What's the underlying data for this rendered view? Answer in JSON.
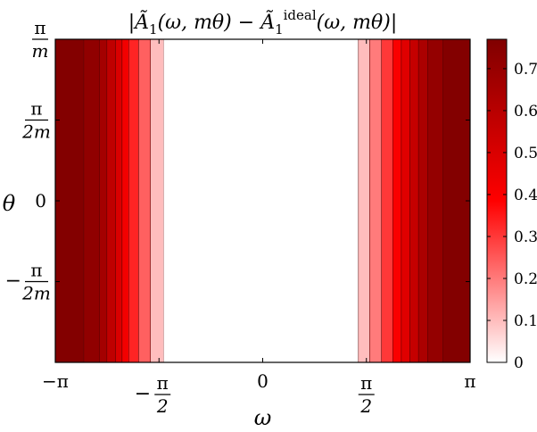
{
  "chart_data": {
    "type": "heatmap",
    "title_parts": [
      "|",
      "Ã",
      "1",
      "(ω, mθ) − ",
      "Ã",
      "1",
      "ideal",
      "(ω, mθ)|"
    ],
    "xlabel": "ω",
    "ylabel": "θ",
    "x_ticks": [
      {
        "value": -3.14159,
        "text": "−π",
        "kind": "plain"
      },
      {
        "value": -1.5708,
        "num": "π",
        "den": "2",
        "sign": "−",
        "kind": "frac"
      },
      {
        "value": 0,
        "text": "0",
        "kind": "plain"
      },
      {
        "value": 1.5708,
        "num": "π",
        "den": "2",
        "sign": "",
        "kind": "frac"
      },
      {
        "value": 3.14159,
        "text": "π",
        "kind": "plain"
      }
    ],
    "y_ticks": [
      {
        "value": 1.0,
        "num": "π",
        "den": "m",
        "sign": "",
        "kind": "frac"
      },
      {
        "value": 0.5,
        "num": "π",
        "den": "2m",
        "sign": "",
        "kind": "frac"
      },
      {
        "value": 0.0,
        "text": "0",
        "kind": "plain"
      },
      {
        "value": -0.5,
        "num": "π",
        "den": "2m",
        "sign": "−",
        "kind": "frac"
      }
    ],
    "xlim": [
      -3.14159,
      3.14159
    ],
    "ylim": [
      -1.0,
      1.0
    ],
    "colorbar": {
      "min": 0,
      "max": 0.77,
      "ticks": [
        "0",
        "0.1",
        "0.2",
        "0.3",
        "0.4",
        "0.5",
        "0.6",
        "0.7"
      ],
      "tick_values": [
        0,
        0.1,
        0.2,
        0.3,
        0.4,
        0.5,
        0.6,
        0.7
      ],
      "colors": [
        "#ffffff",
        "#ff0000",
        "#800000"
      ]
    },
    "bands": [
      {
        "x0": -3.14159,
        "x1": -2.71,
        "value": 0.76
      },
      {
        "x0": -2.71,
        "x1": -2.47,
        "value": 0.72
      },
      {
        "x0": -2.47,
        "x1": -2.36,
        "value": 0.66
      },
      {
        "x0": -2.36,
        "x1": -2.23,
        "value": 0.58
      },
      {
        "x0": -2.23,
        "x1": -2.13,
        "value": 0.5
      },
      {
        "x0": -2.13,
        "x1": -2.03,
        "value": 0.42
      },
      {
        "x0": -2.03,
        "x1": -1.88,
        "value": 0.33
      },
      {
        "x0": -1.88,
        "x1": -1.7,
        "value": 0.24
      },
      {
        "x0": -1.7,
        "x1": -1.5,
        "value": 0.1
      },
      {
        "x0": -1.5,
        "x1": 1.45,
        "value": 0.0
      },
      {
        "x0": 1.45,
        "x1": 1.62,
        "value": 0.1
      },
      {
        "x0": 1.62,
        "x1": 1.8,
        "value": 0.2
      },
      {
        "x0": 1.8,
        "x1": 1.97,
        "value": 0.3
      },
      {
        "x0": 1.97,
        "x1": 2.1,
        "value": 0.4
      },
      {
        "x0": 2.1,
        "x1": 2.23,
        "value": 0.48
      },
      {
        "x0": 2.23,
        "x1": 2.36,
        "value": 0.56
      },
      {
        "x0": 2.36,
        "x1": 2.5,
        "value": 0.64
      },
      {
        "x0": 2.5,
        "x1": 2.73,
        "value": 0.71
      },
      {
        "x0": 2.73,
        "x1": 3.14159,
        "value": 0.76
      }
    ]
  }
}
